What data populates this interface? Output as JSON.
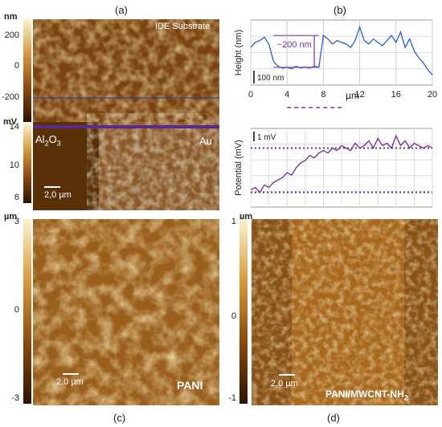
{
  "panel_labels": {
    "a": "(a)",
    "b": "(b)",
    "c": "(c)",
    "d": "(d)"
  },
  "panel_a": {
    "topo_unit": "nm",
    "topo_ticks": [
      "200",
      "0",
      "-200"
    ],
    "topo_title": "IDE Substrate",
    "kpfm_unit": "mV",
    "kpfm_ticks": [
      "14",
      "10",
      "6"
    ],
    "label_left": "Al2O3",
    "label_right": "Au",
    "scalebar": "2,0 µm"
  },
  "chart_data": [
    {
      "type": "line",
      "title": "",
      "xlabel": "µm",
      "ylabel": "Height (nm)",
      "xlim": [
        0,
        20
      ],
      "xticks": [
        0,
        4,
        8,
        12,
        16,
        20
      ],
      "grid": true,
      "scale_bar": "100 nm",
      "annotation": "~200 nm",
      "x": [
        0,
        0.5,
        1,
        1.5,
        2,
        2.5,
        3,
        3.5,
        4,
        4.5,
        5,
        5.5,
        6,
        6.5,
        7,
        7.5,
        8,
        8.5,
        9,
        9.5,
        10,
        10.5,
        11,
        11.5,
        12,
        12.5,
        13,
        13.5,
        14,
        14.5,
        15,
        15.5,
        16,
        16.5,
        17,
        17.5,
        18,
        18.5,
        19,
        19.5,
        20
      ],
      "y": [
        150,
        165,
        170,
        180,
        160,
        110,
        95,
        90,
        92,
        88,
        95,
        90,
        93,
        90,
        95,
        92,
        185,
        175,
        160,
        170,
        165,
        160,
        150,
        170,
        210,
        170,
        160,
        175,
        165,
        155,
        170,
        185,
        165,
        195,
        150,
        175,
        140,
        120,
        105,
        85,
        70
      ]
    },
    {
      "type": "line",
      "title": "",
      "xlabel": "",
      "ylabel": "Potential (mV)",
      "xlim": [
        0,
        20
      ],
      "grid": true,
      "scale_bar": "1 mV",
      "reference_levels": [
        1.8,
        0
      ],
      "x": [
        0,
        0.5,
        1,
        1.5,
        2,
        2.5,
        3,
        3.5,
        4,
        4.5,
        5,
        5.5,
        6,
        6.5,
        7,
        7.5,
        8,
        8.5,
        9,
        9.5,
        10,
        10.5,
        11,
        11.5,
        12,
        12.5,
        13,
        13.5,
        14,
        14.5,
        15,
        15.5,
        16,
        16.5,
        17,
        17.5,
        18,
        18.5,
        19,
        19.5,
        20
      ],
      "y": [
        0.1,
        0.2,
        0,
        0.3,
        0.2,
        0.4,
        0.5,
        0.6,
        0.8,
        0.7,
        1.0,
        1.2,
        1.3,
        1.5,
        1.4,
        1.6,
        1.7,
        1.6,
        1.8,
        1.7,
        1.9,
        1.8,
        1.7,
        2.0,
        1.8,
        1.9,
        2.1,
        1.8,
        2.2,
        1.9,
        2.0,
        1.8,
        2.3,
        1.9,
        2.1,
        1.8,
        2.0,
        1.9,
        1.8,
        1.9,
        1.8
      ]
    }
  ],
  "panel_c": {
    "unit": "µm",
    "ticks": [
      "3",
      "0",
      "-3"
    ],
    "scalebar": "2,0 µm",
    "sample": "PANI"
  },
  "panel_d": {
    "unit": "µm",
    "ticks": [
      "1",
      "0",
      "-1"
    ],
    "scalebar": "2,0 µm",
    "sample": "PANI/MWCNT-NH2"
  }
}
